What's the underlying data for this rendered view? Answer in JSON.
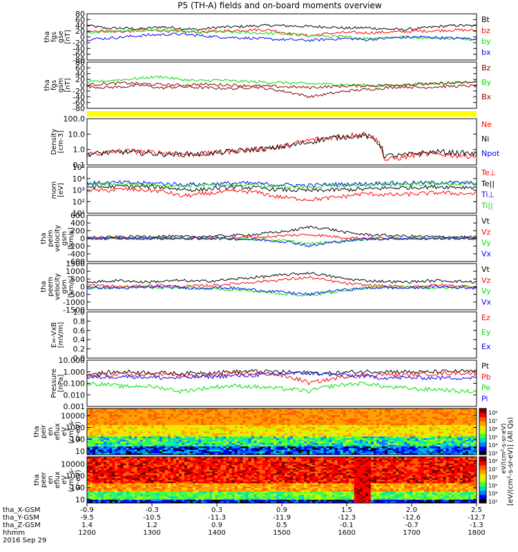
{
  "title": "P5 (TH-A) fields and on-board moments overview",
  "chart_data": [
    {
      "type": "line",
      "ylabel": [
        "tha",
        "fgs",
        "gse",
        "[nT]"
      ],
      "ylim": [
        -80,
        80
      ],
      "yticks": [
        "80",
        "60",
        "40",
        "20",
        "0",
        "-20",
        "-40",
        "-60",
        "-80"
      ],
      "tick_values": [
        80,
        60,
        40,
        20,
        0,
        -20,
        -40,
        -60,
        -80
      ],
      "series": [
        {
          "name": "Bt",
          "color": "#000000",
          "values": [
            40,
            30,
            30,
            28,
            35,
            30,
            25,
            33,
            35,
            38,
            40,
            38,
            36,
            35,
            30,
            32,
            28,
            25,
            30,
            36,
            40,
            38
          ]
        },
        {
          "name": "bz",
          "color": "#ff0000",
          "values": [
            22,
            20,
            18,
            24,
            22,
            18,
            16,
            20,
            22,
            25,
            23,
            10,
            4,
            12,
            15,
            14,
            16,
            18,
            20,
            22,
            24,
            22
          ]
        },
        {
          "name": "by",
          "color": "#00dd00",
          "values": [
            15,
            18,
            20,
            22,
            25,
            20,
            15,
            18,
            16,
            14,
            12,
            10,
            5,
            2,
            0,
            -5,
            -2,
            0,
            -2,
            -4,
            -6,
            -8
          ]
        },
        {
          "name": "bx",
          "color": "#0000ff",
          "values": [
            -8,
            -5,
            0,
            5,
            8,
            10,
            5,
            0,
            -2,
            -5,
            -8,
            -10,
            -12,
            -8,
            -5,
            -10,
            -5,
            -2,
            0,
            -3,
            -5,
            -6
          ]
        }
      ]
    },
    {
      "type": "line",
      "ylabel": [
        "tha",
        "fgs",
        "gsm",
        "[nT]"
      ],
      "ylim": [
        -80,
        80
      ],
      "yticks": [
        "80",
        "60",
        "40",
        "20",
        "0",
        "-20",
        "-40",
        "-60",
        "-80"
      ],
      "tick_values": [
        80,
        60,
        40,
        20,
        0,
        -20,
        -40,
        -60,
        -80
      ],
      "series": [
        {
          "name": "Bz",
          "color": "#800000",
          "values": [
            -5,
            -8,
            -5,
            0,
            -10,
            -5,
            -8,
            -10,
            -12,
            -5,
            -15,
            -25,
            -40,
            -30,
            -20,
            -15,
            -10,
            -5,
            -8,
            -5,
            -3,
            -2
          ]
        },
        {
          "name": "By",
          "color": "#00dd00",
          "values": [
            10,
            15,
            20,
            25,
            30,
            20,
            15,
            18,
            14,
            12,
            10,
            8,
            5,
            4,
            2,
            0,
            -3,
            2,
            5,
            8,
            10,
            12
          ]
        },
        {
          "name": "Bx",
          "color": "#8b0000",
          "values": [
            2,
            5,
            8,
            5,
            2,
            0,
            3,
            2,
            0,
            -2,
            -4,
            -6,
            -8,
            -5,
            -3,
            -2,
            0,
            2,
            3,
            5,
            8,
            10
          ]
        }
      ]
    },
    {
      "type": "line",
      "ylabel": [
        "Density",
        "[cm-3]"
      ],
      "scale": "log",
      "ylim": [
        0.1,
        100
      ],
      "yticks": [
        "100.0",
        "10.0",
        "1.0",
        "0.1"
      ],
      "tick_values": [
        100,
        10,
        1,
        0.1
      ],
      "series": [
        {
          "name": "Ne",
          "color": "#ff0000",
          "values": [
            0.5,
            0.6,
            0.8,
            0.7,
            0.6,
            0.5,
            0.5,
            0.6,
            0.8,
            1,
            1.2,
            2,
            4,
            6,
            8,
            10,
            0.2,
            0.3,
            0.5,
            0.5,
            0.4,
            0.4
          ]
        },
        {
          "name": "Ni",
          "color": "#000000",
          "values": [
            0.5,
            0.6,
            0.7,
            0.6,
            0.5,
            0.5,
            0.5,
            0.6,
            0.8,
            1,
            1.2,
            1.8,
            3,
            5,
            7,
            8,
            0.4,
            0.4,
            0.6,
            0.7,
            0.6,
            0.5
          ]
        },
        {
          "name": "Npot",
          "color": "#0000ff",
          "values": []
        }
      ]
    },
    {
      "type": "line",
      "ylabel": [
        "mom",
        "[eV]"
      ],
      "scale": "log",
      "ylim": [
        10,
        100000
      ],
      "yticks": [
        "10⁵",
        "10⁴",
        "10³",
        "10²",
        "10¹"
      ],
      "tick_values": [
        100000,
        10000,
        1000,
        100,
        10
      ],
      "series": [
        {
          "name": "Te⊥",
          "color": "#ff0000",
          "values": [
            1000,
            900,
            1200,
            1000,
            800,
            300,
            400,
            600,
            800,
            700,
            300,
            200,
            150,
            200,
            300,
            500,
            400,
            400,
            500,
            600,
            500,
            500
          ]
        },
        {
          "name": "Te||",
          "color": "#000000",
          "values": [
            2000,
            1800,
            2200,
            2000,
            1800,
            1200,
            1000,
            1500,
            1800,
            1600,
            1200,
            1000,
            900,
            1000,
            1100,
            1200,
            1500,
            1600,
            1800,
            2000,
            1800,
            1800
          ]
        },
        {
          "name": "Ti⊥",
          "color": "#0000ff",
          "values": [
            4000,
            4200,
            4500,
            4000,
            3800,
            3000,
            3200,
            3500,
            4000,
            3800,
            3000,
            2800,
            2500,
            3000,
            3200,
            3500,
            4000,
            4000,
            4200,
            4500,
            4200,
            4000
          ]
        },
        {
          "name": "Ti||",
          "color": "#00dd00",
          "values": [
            3000,
            3200,
            3500,
            3000,
            2800,
            2200,
            2500,
            2800,
            3000,
            2800,
            2200,
            2000,
            1800,
            2200,
            2500,
            2800,
            3000,
            3200,
            3500,
            3800,
            3500,
            3200
          ]
        }
      ]
    },
    {
      "type": "line",
      "ylabel": [
        "tha",
        "peim",
        "velocity",
        "gsm",
        "[km/s]"
      ],
      "ylim": [
        -600,
        600
      ],
      "yticks": [
        "600",
        "400",
        "200",
        "0",
        "-200",
        "-400",
        "-600"
      ],
      "tick_values": [
        600,
        400,
        200,
        0,
        -200,
        -400,
        -600
      ],
      "series": [
        {
          "name": "Vt",
          "color": "#000000",
          "values": [
            20,
            30,
            40,
            50,
            60,
            40,
            50,
            60,
            80,
            100,
            150,
            200,
            300,
            250,
            150,
            100,
            80,
            60,
            50,
            40,
            40,
            30
          ]
        },
        {
          "name": "Vz",
          "color": "#ff0000",
          "values": [
            0,
            5,
            0,
            -5,
            10,
            0,
            0,
            10,
            20,
            30,
            50,
            80,
            100,
            60,
            20,
            10,
            5,
            0,
            0,
            0,
            0,
            0
          ]
        },
        {
          "name": "Vy",
          "color": "#00dd00",
          "values": [
            0,
            0,
            5,
            0,
            -5,
            0,
            0,
            -5,
            -10,
            -20,
            -40,
            -80,
            -150,
            -100,
            -50,
            -20,
            -10,
            0,
            0,
            0,
            0,
            0
          ]
        },
        {
          "name": "Vx",
          "color": "#0000ff",
          "values": [
            0,
            -5,
            0,
            5,
            0,
            0,
            -5,
            0,
            -10,
            -30,
            -60,
            -100,
            -200,
            -120,
            -60,
            -20,
            -10,
            0,
            0,
            0,
            0,
            0
          ]
        }
      ]
    },
    {
      "type": "line",
      "ylabel": [
        "tha",
        "peem",
        "velocity",
        "gsm",
        "[km/s]"
      ],
      "ylim": [
        -1500,
        1500
      ],
      "yticks": [
        "1500",
        "1000",
        "500",
        "0",
        "-500",
        "-1000",
        "-1500"
      ],
      "tick_values": [
        1500,
        1000,
        500,
        0,
        -500,
        -1000,
        -1500
      ],
      "series": [
        {
          "name": "Vt",
          "color": "#000000",
          "values": [
            300,
            350,
            400,
            300,
            350,
            400,
            350,
            400,
            500,
            600,
            700,
            800,
            900,
            700,
            500,
            400,
            350,
            300,
            350,
            400,
            350,
            300
          ]
        },
        {
          "name": "Vz",
          "color": "#ff0000",
          "values": [
            100,
            50,
            0,
            50,
            100,
            0,
            50,
            100,
            200,
            300,
            400,
            500,
            600,
            400,
            200,
            100,
            50,
            0,
            50,
            100,
            50,
            0
          ]
        },
        {
          "name": "Vy",
          "color": "#00dd00",
          "values": [
            -50,
            -100,
            -50,
            0,
            -100,
            -50,
            -100,
            -150,
            -200,
            -300,
            -400,
            -500,
            -600,
            -400,
            -200,
            -100,
            -50,
            0,
            -50,
            -100,
            -50,
            0
          ]
        },
        {
          "name": "Vx",
          "color": "#0000ff",
          "values": [
            -100,
            -50,
            -100,
            -50,
            0,
            -50,
            -100,
            -50,
            -100,
            -200,
            -300,
            -400,
            -500,
            -300,
            -200,
            -100,
            -50,
            -100,
            -50,
            0,
            -50,
            -100
          ]
        }
      ]
    },
    {
      "type": "line",
      "ylabel": [
        "E=-VxB",
        "[mV/m]"
      ],
      "ylim": [
        0,
        1
      ],
      "yticks": [
        "1.0",
        "0.8",
        "0.6",
        "0.4",
        "0.2",
        "0.0"
      ],
      "tick_values": [
        1,
        0.8,
        0.6,
        0.4,
        0.2,
        0
      ],
      "series": [
        {
          "name": "Ez",
          "color": "#ff0000",
          "values": []
        },
        {
          "name": "Ey",
          "color": "#00dd00",
          "values": []
        },
        {
          "name": "Ex",
          "color": "#0000ff",
          "values": []
        }
      ]
    },
    {
      "type": "line",
      "ylabel": [
        "Pressure",
        "[nPa]"
      ],
      "scale": "log",
      "ylim": [
        0.001,
        10
      ],
      "yticks": [
        "10.000",
        "1.000",
        "0.100",
        "0.010",
        "0.001"
      ],
      "tick_values": [
        10,
        1,
        0.1,
        0.01,
        0.001
      ],
      "series": [
        {
          "name": "Pt",
          "color": "#000000",
          "values": [
            0.6,
            0.8,
            1,
            0.9,
            0.8,
            0.7,
            0.8,
            0.9,
            1,
            1.1,
            1,
            0.9,
            0.8,
            0.7,
            0.9,
            1,
            1.1,
            1,
            0.9,
            1,
            1.1,
            1
          ]
        },
        {
          "name": "Pb",
          "color": "#ff0000",
          "values": [
            0.4,
            0.5,
            0.6,
            0.5,
            0.6,
            0.5,
            0.4,
            0.5,
            0.6,
            0.7,
            0.6,
            0.3,
            0.1,
            0.2,
            0.4,
            0.5,
            0.6,
            0.5,
            0.6,
            0.7,
            0.8,
            0.7
          ]
        },
        {
          "name": "Pe",
          "color": "#00dd00",
          "values": [
            0.1,
            0.08,
            0.05,
            0.06,
            0.04,
            0.02,
            0.03,
            0.05,
            0.06,
            0.05,
            0.04,
            0.03,
            0.02,
            0.05,
            0.08,
            0.1,
            0.05,
            0.04,
            0.03,
            0.03,
            0.02,
            0.02
          ]
        },
        {
          "name": "Pi",
          "color": "#0000ff",
          "values": [
            0.3,
            0.35,
            0.4,
            0.35,
            0.3,
            0.3,
            0.35,
            0.4,
            0.45,
            0.5,
            0.6,
            0.7,
            0.8,
            0.6,
            0.5,
            0.4,
            0.3,
            0.3,
            0.3,
            0.3,
            0.3,
            0.3
          ]
        }
      ]
    },
    {
      "type": "heatmap",
      "ylabel": [
        "tha",
        "peir",
        "en",
        "eflux",
        "eV",
        "(cm²-s-",
        "sr-eV)"
      ],
      "scale": "log",
      "ylim": [
        5,
        40000
      ],
      "yticks": [
        "10000",
        "1000",
        "100",
        "10"
      ],
      "tick_values": [
        10000,
        1000,
        100,
        10
      ]
    },
    {
      "type": "heatmap",
      "ylabel": [
        "tha",
        "peer",
        "en",
        "eflux",
        "eV",
        "(cm²-s-",
        "sr-eV)"
      ],
      "scale": "log",
      "ylim": [
        5,
        40000
      ],
      "yticks": [
        "10000",
        "1000",
        "100",
        "10"
      ],
      "tick_values": [
        10000,
        1000,
        100,
        10
      ]
    }
  ],
  "colorbar": {
    "labels": [
      "10⁸",
      "10⁷",
      "10⁶",
      "10⁵",
      "10⁴",
      "10³"
    ],
    "title": "[eV/(cm²-s-sr-eV)] (All Qs)",
    "title_top": "eV/(cm²-s-sr-eV)"
  },
  "x_axis": {
    "rows": [
      {
        "label": "tha_X-GSM",
        "values": [
          "-0.9",
          "-0.3",
          "0.3",
          "0.9",
          "1.5",
          "2.0",
          "2.5"
        ]
      },
      {
        "label": "tha_Y-GSM",
        "values": [
          "-9.5",
          "-10.5",
          "-11.3",
          "-11.9",
          "-12.3",
          "-12.6",
          "-12.7"
        ]
      },
      {
        "label": "tha_Z-GSM",
        "values": [
          "1.4",
          "1.2",
          "0.9",
          "0.5",
          "-0.1",
          "-0.7",
          "-1.3"
        ]
      },
      {
        "label": "hhmm",
        "values": [
          "1200",
          "1300",
          "1400",
          "1500",
          "1600",
          "1700",
          "1800"
        ]
      }
    ],
    "date": "2016 Sep 29"
  }
}
